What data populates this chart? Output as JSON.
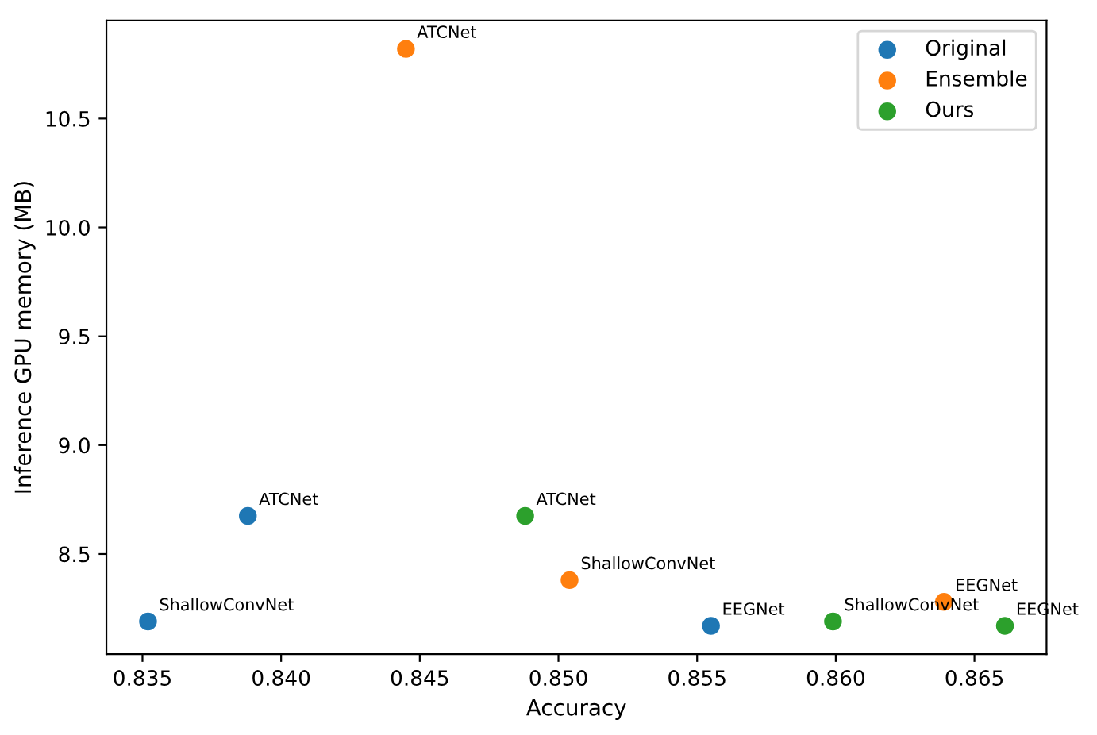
{
  "chart_data": {
    "type": "scatter",
    "xlabel": "Accuracy",
    "ylabel": "Inference GPU memory (MB)",
    "xlim": [
      0.8337,
      0.8676
    ],
    "xticks": [
      0.835,
      {
        "value": 0.84,
        "label": "0.840"
      },
      0.845,
      {
        "value": 0.85,
        "label": "0.850"
      },
      0.855,
      {
        "value": 0.86,
        "label": "0.860"
      },
      0.865
    ],
    "ylim": [
      8.04,
      10.95
    ],
    "yticks": [
      8.5,
      {
        "value": 9,
        "label": "9.0"
      },
      9.5,
      {
        "value": 10,
        "label": "10.0"
      },
      10.5
    ],
    "grid": false,
    "legend": "top right",
    "marker": "circle",
    "series": [
      {
        "name": "Original",
        "color": "#1f77b4",
        "x": [
          0.8352,
          0.8388,
          0.8555
        ],
        "values": [
          8.19,
          8.675,
          8.17
        ],
        "value_labels": [
          "ShallowConvNet",
          "ATCNet",
          "EEGNet"
        ]
      },
      {
        "name": "Ensemble",
        "color": "#ff7f0e",
        "x": [
          0.8445,
          0.8504,
          0.8639
        ],
        "values": [
          10.82,
          8.38,
          8.28
        ],
        "value_labels": [
          "ATCNet",
          "ShallowConvNet",
          "EEGNet"
        ]
      },
      {
        "name": "Ours",
        "color": "#2ca02c",
        "x": [
          0.8488,
          0.8599,
          0.8661
        ],
        "values": [
          8.675,
          8.19,
          8.17
        ],
        "value_labels": [
          "ATCNet",
          "ShallowConvNet",
          "EEGNet"
        ]
      }
    ]
  }
}
